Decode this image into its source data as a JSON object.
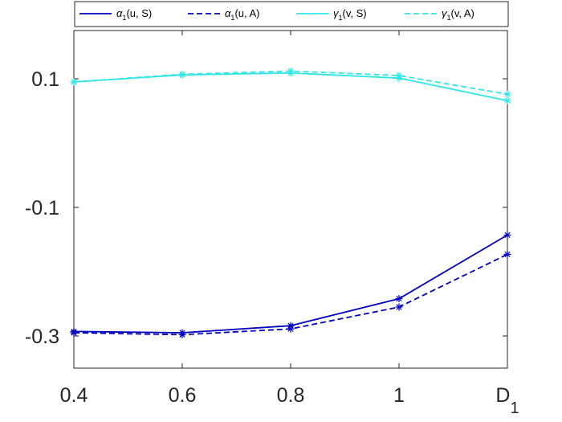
{
  "chart_data": {
    "type": "line",
    "x": [
      0.4,
      0.6,
      0.8,
      1.0,
      1.2
    ],
    "x_tick_labels": [
      "0.4",
      "0.6",
      "0.8",
      "1",
      "D"
    ],
    "x_tick_subscript": [
      "",
      "",
      "",
      "",
      "1"
    ],
    "y_ticks": [
      0.1,
      -0.1,
      -0.3
    ],
    "y_tick_labels": [
      "0.1",
      "-0.1",
      "-0.3"
    ],
    "xlim": [
      0.4,
      1.2
    ],
    "ylim": [
      -0.35,
      0.175
    ],
    "grid": false,
    "legend_position": "top",
    "series": [
      {
        "name": "α1(u, S)",
        "legend_symbol": "α",
        "legend_sub": "1",
        "legend_rest": "(u, S)",
        "color": "#0000c0",
        "dash": "solid",
        "marker": "asterisk",
        "values": [
          -0.293,
          -0.295,
          -0.284,
          -0.242,
          -0.143
        ]
      },
      {
        "name": "α1(u, A)",
        "legend_symbol": "α",
        "legend_sub": "1",
        "legend_rest": "(u, A)",
        "color": "#0000c0",
        "dash": "dashed",
        "marker": "asterisk",
        "values": [
          -0.295,
          -0.298,
          -0.289,
          -0.255,
          -0.173
        ]
      },
      {
        "name": "γ1(v, S)",
        "legend_symbol": "γ",
        "legend_sub": "1",
        "legend_rest": "(v, S)",
        "color": "#33e6e6",
        "dash": "solid",
        "marker": "asterisk",
        "values": [
          0.095,
          0.106,
          0.109,
          0.101,
          0.066
        ]
      },
      {
        "name": "γ1(v, A)",
        "legend_symbol": "γ",
        "legend_sub": "1",
        "legend_rest": "(v, A)",
        "color": "#33e6e6",
        "dash": "dashed",
        "marker": "asterisk",
        "values": [
          0.095,
          0.107,
          0.112,
          0.105,
          0.076
        ]
      }
    ]
  }
}
